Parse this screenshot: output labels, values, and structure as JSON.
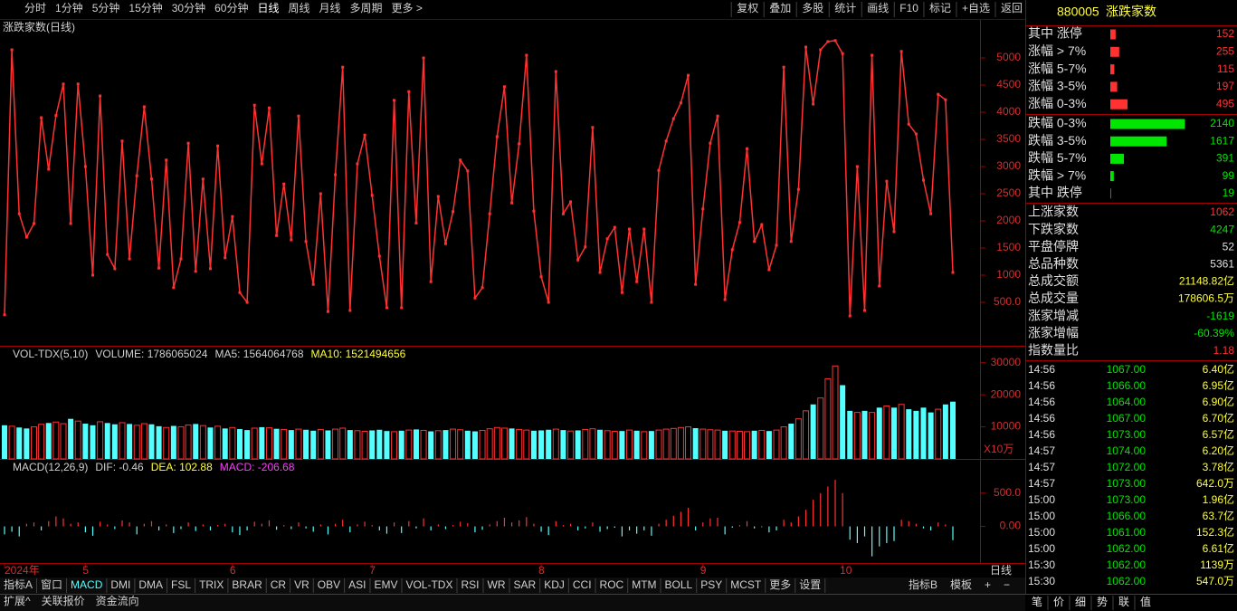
{
  "toolbar": {
    "periods": [
      "分时",
      "1分钟",
      "5分钟",
      "15分钟",
      "30分钟",
      "60分钟",
      "日线",
      "周线",
      "月线",
      "多周期",
      "更多 >"
    ],
    "active": "日线",
    "tools": [
      "复权",
      "叠加",
      "多股",
      "统计",
      "画线",
      "F10",
      "标记",
      "+自选",
      "返回"
    ]
  },
  "chart_data": [
    {
      "type": "line",
      "title": "涨跌家数(日线)",
      "color": "#ff3232",
      "values": [
        270,
        5150,
        2130,
        1700,
        1950,
        3900,
        2950,
        3940,
        4520,
        1950,
        4520,
        3000,
        1000,
        4300,
        1380,
        1120,
        3470,
        1300,
        2830,
        4100,
        2770,
        1130,
        3120,
        770,
        1300,
        3430,
        1070,
        2770,
        1120,
        3380,
        1320,
        2080,
        680,
        500,
        4130,
        3050,
        4080,
        1730,
        2680,
        1650,
        3930,
        1620,
        830,
        2500,
        330,
        2850,
        4830,
        350,
        3050,
        3580,
        2470,
        1350,
        400,
        4220,
        400,
        4380,
        1960,
        5000,
        880,
        2450,
        1580,
        2170,
        3120,
        2920,
        580,
        770,
        2130,
        3550,
        4470,
        2330,
        3420,
        5050,
        2180,
        970,
        500,
        4750,
        2130,
        2350,
        1280,
        1520,
        3720,
        1050,
        1670,
        1880,
        680,
        1850,
        880,
        1850,
        500,
        2930,
        3470,
        3880,
        4170,
        4680,
        830,
        2220,
        3430,
        3930,
        550,
        1470,
        1970,
        3330,
        1620,
        1930,
        1100,
        1550,
        4830,
        1620,
        2580,
        5200,
        4150,
        5150,
        5300,
        5320,
        5080,
        250,
        3000,
        350,
        5050,
        800,
        2730,
        1800,
        5120,
        3780,
        3600,
        2750,
        2130,
        4330,
        4230,
        1050
      ],
      "ylim": [
        -300,
        5700
      ],
      "yticks": [
        {
          "value": 500,
          "label": "500.0"
        },
        1000,
        1500,
        2000,
        2500,
        3000,
        3500,
        4000,
        4500,
        5000
      ]
    },
    {
      "type": "bar",
      "legend": [
        {
          "text": "VOL-TDX(5,10)",
          "color": "#d0d0d0"
        },
        {
          "text": "VOLUME: 1786065024",
          "color": "#d0d0d0"
        },
        {
          "text": "MA5: 1564064768",
          "color": "#d0d0d0"
        },
        {
          "text": "MA10: 1521494656",
          "color": "#ffff3c"
        }
      ],
      "unit": "X10万",
      "up_color": "#ff3232",
      "down_color": "#54ffff",
      "values": [
        10500,
        10200,
        9800,
        9500,
        10000,
        10800,
        11200,
        11500,
        11000,
        12500,
        11800,
        11000,
        10500,
        11600,
        11200,
        10800,
        11300,
        10900,
        10500,
        11000,
        10800,
        10200,
        9800,
        10300,
        10000,
        10600,
        10900,
        10400,
        9800,
        10200,
        9500,
        9800,
        9300,
        9000,
        9600,
        9900,
        9700,
        9400,
        9200,
        9000,
        9300,
        9100,
        8800,
        9200,
        8900,
        9300,
        9600,
        9000,
        8800,
        8600,
        8900,
        9100,
        8700,
        8500,
        8800,
        9000,
        9200,
        8900,
        8600,
        8800,
        9000,
        9300,
        9100,
        8800,
        8600,
        8900,
        9400,
        9800,
        9600,
        9500,
        9200,
        9000,
        8800,
        8900,
        9100,
        9300,
        9000,
        8700,
        8900,
        9200,
        9400,
        9100,
        8800,
        8600,
        8700,
        9000,
        8800,
        8500,
        8700,
        9000,
        9300,
        9500,
        9800,
        10000,
        9600,
        9300,
        9100,
        9000,
        8800,
        8700,
        8600,
        8500,
        8800,
        8900,
        8700,
        9000,
        10000,
        11000,
        12500,
        15000,
        17000,
        19000,
        25000,
        29000,
        23000,
        15000,
        14500,
        15000,
        14500,
        16000,
        16500,
        16000,
        17000,
        15500,
        15000,
        16000,
        14500,
        15500,
        17000,
        17860.65
      ],
      "ylim": [
        0,
        35000
      ],
      "yticks": [
        10000,
        20000,
        30000
      ]
    },
    {
      "type": "macd",
      "legend": [
        {
          "text": "MACD(12,26,9)",
          "color": "#d0d0d0"
        },
        {
          "text": "DIF: -0.46",
          "color": "#d0d0d0"
        },
        {
          "text": "DEA: 102.88",
          "color": "#ffff3c"
        },
        {
          "text": "MACD: -206.68",
          "color": "#ff3cff"
        }
      ],
      "period_label": "日线",
      "up_color": "#ff3232",
      "down_color": "#54ffff",
      "categories": [
        "2024年",
        null,
        null,
        null,
        null,
        null,
        null,
        null,
        null,
        null,
        null,
        "5",
        null,
        null,
        null,
        null,
        null,
        null,
        null,
        null,
        null,
        null,
        null,
        null,
        null,
        null,
        null,
        null,
        null,
        null,
        null,
        "6",
        null,
        null,
        null,
        null,
        null,
        null,
        null,
        null,
        null,
        null,
        null,
        null,
        null,
        null,
        null,
        null,
        null,
        null,
        "7",
        null,
        null,
        null,
        null,
        null,
        null,
        null,
        null,
        null,
        null,
        null,
        null,
        null,
        null,
        null,
        null,
        null,
        null,
        null,
        null,
        null,
        null,
        "8",
        null,
        null,
        null,
        null,
        null,
        null,
        null,
        null,
        null,
        null,
        null,
        null,
        null,
        null,
        null,
        null,
        null,
        null,
        null,
        null,
        null,
        "9",
        null,
        null,
        null,
        null,
        null,
        null,
        null,
        null,
        null,
        null,
        null,
        null,
        null,
        null,
        null,
        null,
        null,
        null,
        "10",
        null,
        null,
        null,
        null,
        null,
        null,
        null,
        null,
        null,
        null,
        null,
        null,
        null,
        null,
        null
      ],
      "values": [
        -120,
        -80,
        -150,
        40,
        60,
        -60,
        80,
        150,
        120,
        40,
        60,
        -90,
        -140,
        70,
        30,
        -40,
        90,
        60,
        -120,
        40,
        80,
        -60,
        30,
        -100,
        -40,
        60,
        -70,
        30,
        -60,
        20,
        40,
        -90,
        -130,
        -60,
        70,
        40,
        90,
        -50,
        20,
        -40,
        60,
        -30,
        -80,
        30,
        -120,
        40,
        100,
        -90,
        30,
        70,
        20,
        -60,
        -110,
        60,
        -100,
        80,
        -30,
        120,
        -60,
        30,
        -40,
        20,
        70,
        50,
        -90,
        -50,
        30,
        80,
        130,
        60,
        90,
        140,
        40,
        -80,
        -130,
        80,
        20,
        40,
        -60,
        -30,
        60,
        -80,
        -40,
        -20,
        -150,
        -60,
        -110,
        -60,
        -140,
        40,
        100,
        160,
        220,
        280,
        -60,
        60,
        120,
        130,
        -120,
        -20,
        20,
        80,
        -30,
        -10,
        -90,
        -60,
        100,
        60,
        150,
        250,
        400,
        500,
        600,
        700,
        500,
        -200,
        -250,
        -150,
        -450,
        -300,
        -250,
        -220,
        100,
        80,
        40,
        -30,
        -60,
        60,
        30,
        -206.68
      ],
      "ylim": [
        -550,
        1000
      ],
      "yticks": [
        {
          "value": 0,
          "label": "0.00"
        },
        {
          "value": 500,
          "label": "500.0"
        }
      ]
    }
  ],
  "breadth": {
    "code": "880005",
    "name": "涨跌家数",
    "rows": [
      {
        "label": "其中 涨停",
        "value": 152,
        "color": "#ff3232"
      },
      {
        "label": "涨幅 > 7%",
        "value": 255,
        "color": "#ff3232"
      },
      {
        "label": "涨幅 5-7%",
        "value": 115,
        "color": "#ff3232"
      },
      {
        "label": "涨幅 3-5%",
        "value": 197,
        "color": "#ff3232"
      },
      {
        "label": "涨幅 0-3%",
        "value": 495,
        "color": "#ff3232"
      },
      {
        "label": "跌幅 0-3%",
        "value": 2140,
        "color": "#00e600"
      },
      {
        "label": "跌幅 3-5%",
        "value": 1617,
        "color": "#00e600"
      },
      {
        "label": "跌幅 5-7%",
        "value": 391,
        "color": "#00e600"
      },
      {
        "label": "跌幅 > 7%",
        "value": 99,
        "color": "#00e600"
      },
      {
        "label": "其中 跌停",
        "value": 19,
        "color": "#00e600"
      }
    ]
  },
  "stats": [
    {
      "label": "上涨家数",
      "value": 1062,
      "color": "#ff3232"
    },
    {
      "label": "下跌家数",
      "value": 4247,
      "color": "#00e600"
    },
    {
      "label": "平盘停牌",
      "value": 52,
      "color": "#e0e0e0"
    },
    {
      "label": "总品种数",
      "value": 5361,
      "color": "#e0e0e0"
    },
    {
      "label": "总成交额",
      "value": "21148.82亿",
      "color": "#ffff3c"
    },
    {
      "label": "总成交量",
      "value": "178606.5万",
      "color": "#ffff3c"
    },
    {
      "label": "涨家增减",
      "value": -1619,
      "color": "#00e600"
    },
    {
      "label": "涨家增幅",
      "value": "-60.39%",
      "color": "#00e600"
    },
    {
      "label": "指数量比",
      "value": 1.18,
      "color": "#ff3232"
    }
  ],
  "ticks": [
    [
      "14:56",
      "1067.00",
      "6.40亿"
    ],
    [
      "14:56",
      "1066.00",
      "6.95亿"
    ],
    [
      "14:56",
      "1064.00",
      "6.90亿"
    ],
    [
      "14:56",
      "1067.00",
      "6.70亿"
    ],
    [
      "14:56",
      "1073.00",
      "6.57亿"
    ],
    [
      "14:57",
      "1074.00",
      "6.20亿"
    ],
    [
      "14:57",
      "1072.00",
      "3.78亿"
    ],
    [
      "14:57",
      "1073.00",
      "642.0万"
    ],
    [
      "15:00",
      "1073.00",
      "1.96亿"
    ],
    [
      "15:00",
      "1066.00",
      "63.7亿"
    ],
    [
      "15:00",
      "1061.00",
      "152.3亿"
    ],
    [
      "15:00",
      "1062.00",
      "6.61亿"
    ],
    [
      "15:30",
      "1062.00",
      "1139万"
    ],
    [
      "15:30",
      "1062.00",
      "547.0万"
    ]
  ],
  "indicators": {
    "items": [
      "指标A",
      "窗口",
      "MACD",
      "DMI",
      "DMA",
      "FSL",
      "TRIX",
      "BRAR",
      "CR",
      "VR",
      "OBV",
      "ASI",
      "EMV",
      "VOL-TDX",
      "RSI",
      "WR",
      "SAR",
      "KDJ",
      "CCI",
      "ROC",
      "MTM",
      "BOLL",
      "PSY",
      "MCST",
      "更多",
      "设置"
    ],
    "active": "MACD",
    "right": [
      "指标B",
      "模板",
      "+",
      "−"
    ]
  },
  "footer": [
    "扩展^",
    "关联报价",
    "资金流向"
  ],
  "side_tabs": [
    "笔",
    "价",
    "细",
    "势",
    "联",
    "值"
  ]
}
